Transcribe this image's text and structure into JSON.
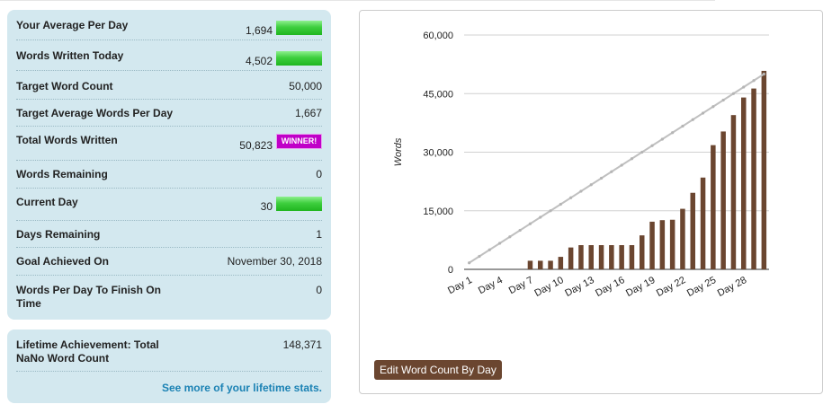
{
  "stats": [
    {
      "label": "Your Average Per Day",
      "value": "1,694",
      "indicator": "green-bar"
    },
    {
      "label": "Words Written Today",
      "value": "4,502",
      "indicator": "green-bar"
    },
    {
      "label": "Target Word Count",
      "value": "50,000"
    },
    {
      "label": "Target Average Words Per Day",
      "value": "1,667"
    },
    {
      "label": "Total Words Written",
      "value": "50,823",
      "badge": "WINNER!"
    },
    {
      "label": "Words Remaining",
      "value": "0"
    },
    {
      "label": "Current Day",
      "value": "30",
      "indicator": "green-bar"
    },
    {
      "label": "Days Remaining",
      "value": "1"
    },
    {
      "label": "Goal Achieved On",
      "value": "November 30, 2018"
    },
    {
      "label": "Words Per Day To Finish On",
      "label_line2": "Time",
      "value": "0"
    }
  ],
  "lifetime": {
    "label_line1": "Lifetime Achievement: Total",
    "label_line2": "NaNo Word Count",
    "value": "148,371",
    "link": "See more of your lifetime stats."
  },
  "edit_button": "Edit Word Count By Day",
  "colors": {
    "panel_bg": "#d3e8ef",
    "bar": "#6b4630",
    "target_line": "#c0c0c0",
    "winner": "#c000c8",
    "link": "#1b82b4",
    "green": "#2fc42f"
  },
  "chart_data": {
    "type": "bar",
    "ylabel": "Words",
    "ylim": [
      0,
      60000
    ],
    "y_ticks": [
      "0",
      "15,000",
      "30,000",
      "45,000",
      "60,000"
    ],
    "y_tick_values": [
      0,
      15000,
      30000,
      45000,
      60000
    ],
    "x_tick_labels": [
      "Day 1",
      "Day 4",
      "Day 7",
      "Day 10",
      "Day 13",
      "Day 16",
      "Day 19",
      "Day 22",
      "Day 25",
      "Day 28"
    ],
    "categories": [
      "Day 1",
      "Day 2",
      "Day 3",
      "Day 4",
      "Day 5",
      "Day 6",
      "Day 7",
      "Day 8",
      "Day 9",
      "Day 10",
      "Day 11",
      "Day 12",
      "Day 13",
      "Day 14",
      "Day 15",
      "Day 16",
      "Day 17",
      "Day 18",
      "Day 19",
      "Day 20",
      "Day 21",
      "Day 22",
      "Day 23",
      "Day 24",
      "Day 25",
      "Day 26",
      "Day 27",
      "Day 28",
      "Day 29",
      "Day 30"
    ],
    "series": [
      {
        "type": "bar",
        "values": [
          0,
          0,
          0,
          0,
          0,
          0,
          2200,
          2200,
          2200,
          3200,
          5600,
          6200,
          6200,
          6200,
          6200,
          6200,
          6200,
          8700,
          12200,
          12600,
          12700,
          15500,
          19600,
          23500,
          31800,
          35300,
          39500,
          44000,
          46300,
          50823
        ]
      },
      {
        "type": "line",
        "values": [
          1667,
          3333,
          5000,
          6667,
          8333,
          10000,
          11667,
          13333,
          15000,
          16667,
          18333,
          20000,
          21667,
          23333,
          25000,
          26667,
          28333,
          30000,
          31667,
          33333,
          35000,
          36667,
          38333,
          40000,
          41667,
          43333,
          45000,
          46667,
          48333,
          50000
        ]
      }
    ],
    "grid": true,
    "legend": "none"
  }
}
